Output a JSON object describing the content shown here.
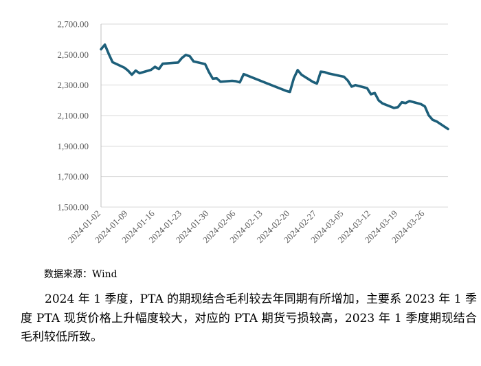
{
  "chart_data": {
    "type": "line",
    "title": "",
    "xlabel": "",
    "ylabel": "",
    "ylim": [
      1500,
      2700
    ],
    "y_ticks": [
      "2,700.00",
      "2,500.00",
      "2,300.00",
      "2,100.00",
      "1,900.00",
      "1,700.00",
      "1,500.00"
    ],
    "x_ticks": [
      "2024-01-02",
      "2024-01-09",
      "2024-01-16",
      "2024-01-23",
      "2024-01-30",
      "2024-02-06",
      "2024-02-13",
      "2024-02-20",
      "2024-02-27",
      "2024-03-05",
      "2024-03-12",
      "2024-03-19",
      "2024-03-26"
    ],
    "x_range": [
      "2024-01-02",
      "2024-04-01"
    ],
    "grid": "horizontal",
    "legend": "none",
    "line_color": "#1d5f7a",
    "series": [
      {
        "x": [
          "2024-01-02",
          "2024-01-03",
          "2024-01-04",
          "2024-01-05",
          "2024-01-08",
          "2024-01-09",
          "2024-01-10",
          "2024-01-11",
          "2024-01-12",
          "2024-01-15",
          "2024-01-16",
          "2024-01-17",
          "2024-01-18",
          "2024-01-19",
          "2024-01-22",
          "2024-01-23",
          "2024-01-24",
          "2024-01-25",
          "2024-01-26",
          "2024-01-29",
          "2024-01-30",
          "2024-01-31",
          "2024-02-01",
          "2024-02-02",
          "2024-02-05",
          "2024-02-06",
          "2024-02-07",
          "2024-02-08",
          "2024-02-19",
          "2024-02-20",
          "2024-02-21",
          "2024-02-22",
          "2024-02-23",
          "2024-02-26",
          "2024-02-27",
          "2024-02-28",
          "2024-02-29",
          "2024-03-01",
          "2024-03-04",
          "2024-03-05",
          "2024-03-06",
          "2024-03-07",
          "2024-03-08",
          "2024-03-11",
          "2024-03-12",
          "2024-03-13",
          "2024-03-14",
          "2024-03-15",
          "2024-03-18",
          "2024-03-19",
          "2024-03-20",
          "2024-03-21",
          "2024-03-22",
          "2024-03-25",
          "2024-03-26",
          "2024-03-27",
          "2024-03-28",
          "2024-03-29",
          "2024-04-01"
        ],
        "values": [
          2535,
          2565,
          2505,
          2450,
          2415,
          2395,
          2368,
          2395,
          2378,
          2400,
          2420,
          2405,
          2440,
          2442,
          2448,
          2478,
          2498,
          2490,
          2455,
          2438,
          2385,
          2342,
          2345,
          2322,
          2328,
          2325,
          2318,
          2372,
          2262,
          2255,
          2345,
          2398,
          2368,
          2320,
          2310,
          2388,
          2385,
          2376,
          2360,
          2355,
          2330,
          2290,
          2300,
          2280,
          2240,
          2248,
          2200,
          2180,
          2150,
          2155,
          2187,
          2182,
          2195,
          2175,
          2160,
          2102,
          2072,
          2062,
          2012
        ]
      }
    ]
  },
  "source": "数据来源：Wind",
  "paragraph": "2024 年 1 季度，PTA 的期现结合毛利较去年同期有所增加，主要系 2023 年 1 季度 PTA 现货价格上升幅度较大，对应的 PTA 期货亏损较高，2023 年 1 季度期现结合毛利较低所致。"
}
